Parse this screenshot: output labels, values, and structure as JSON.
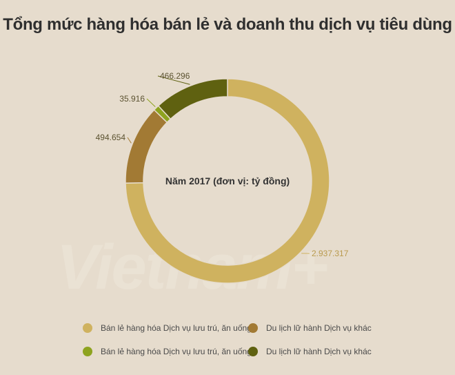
{
  "title": "Tổng mức hàng hóa bán lẻ và doanh thu dịch vụ tiêu dùng",
  "watermark": "Vietnam+",
  "chart_data": {
    "type": "pie",
    "donut": true,
    "center_label": "Năm 2017 (đơn vị: tỷ đồng)",
    "slices": [
      {
        "label": "Bán lẻ hàng hóa",
        "value": 2937317,
        "display": "2.937.317",
        "color": "#cfb25f"
      },
      {
        "label": "Dịch vụ lưu trú, ăn uống",
        "value": 494654,
        "display": "494.654",
        "color": "#a27a34"
      },
      {
        "label": "Du lịch lữ hành",
        "value": 35916,
        "display": "35.916",
        "color": "#8ea31f"
      },
      {
        "label": "Dịch vụ khác",
        "value": 466296,
        "display": "466.296",
        "color": "#5f6110"
      }
    ],
    "legend": [
      {
        "text": "Bán lẻ hàng hóa Dịch vụ lưu trú, ăn uống",
        "color": "#cfb25f"
      },
      {
        "text": "Du lịch lữ hành Dịch vụ khác",
        "color": "#a27a34"
      },
      {
        "text": "Bán lẻ hàng hóa Dịch vụ lưu trú, ăn uống",
        "color": "#8ea31f"
      },
      {
        "text": "Du lịch lữ hành Dịch vụ khác",
        "color": "#5f6110"
      }
    ]
  }
}
